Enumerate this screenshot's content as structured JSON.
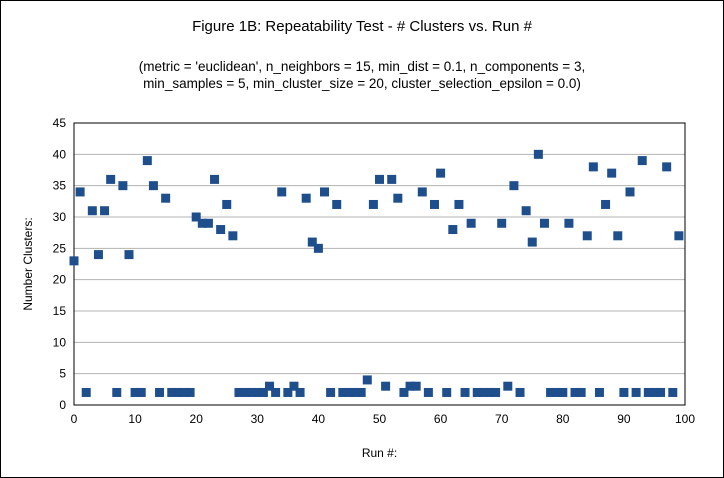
{
  "chart_data": {
    "type": "scatter",
    "title": "Figure 1B: Repeatability Test - # Clusters vs. Run #",
    "subtitle_line1": "(metric = 'euclidean', n_neighbors = 15, min_dist = 0.1, n_components = 3,",
    "subtitle_line2": "min_samples = 5, min_cluster_size = 20, cluster_selection_epsilon = 0.0)",
    "xlabel": "Run #:",
    "ylabel": "Number Clusters:",
    "xlim": [
      0,
      100
    ],
    "ylim": [
      0,
      45
    ],
    "xticks": [
      0,
      10,
      20,
      30,
      40,
      50,
      60,
      70,
      80,
      90,
      100
    ],
    "yticks": [
      0,
      5,
      10,
      15,
      20,
      25,
      30,
      35,
      40,
      45
    ],
    "grid": "horizontal",
    "legend": "none",
    "marker_color": "#1f4e8c",
    "x": [
      0,
      1,
      2,
      3,
      4,
      5,
      6,
      7,
      8,
      9,
      10,
      11,
      12,
      13,
      14,
      15,
      16,
      17,
      18,
      19,
      20,
      21,
      22,
      23,
      24,
      25,
      26,
      27,
      28,
      29,
      30,
      31,
      32,
      33,
      34,
      35,
      36,
      37,
      38,
      39,
      40,
      41,
      42,
      43,
      44,
      45,
      46,
      47,
      48,
      49,
      50,
      51,
      52,
      53,
      54,
      55,
      56,
      57,
      58,
      59,
      60,
      61,
      62,
      63,
      64,
      65,
      66,
      67,
      68,
      69,
      70,
      71,
      72,
      73,
      74,
      75,
      76,
      77,
      78,
      79,
      80,
      81,
      82,
      83,
      84,
      85,
      86,
      87,
      88,
      89,
      90,
      91,
      92,
      93,
      94,
      95,
      96,
      97,
      98,
      99
    ],
    "y": [
      23,
      34,
      2,
      31,
      24,
      31,
      36,
      2,
      35,
      24,
      2,
      2,
      39,
      35,
      2,
      33,
      2,
      2,
      2,
      2,
      30,
      29,
      29,
      36,
      28,
      32,
      27,
      2,
      2,
      2,
      2,
      2,
      3,
      2,
      34,
      2,
      3,
      2,
      33,
      26,
      25,
      34,
      2,
      32,
      2,
      2,
      2,
      2,
      4,
      32,
      36,
      3,
      36,
      33,
      2,
      3,
      3,
      34,
      2,
      32,
      37,
      2,
      28,
      32,
      2,
      29,
      2,
      2,
      2,
      2,
      29,
      3,
      35,
      2,
      31,
      26,
      40,
      29,
      2,
      2,
      2,
      29,
      2,
      2,
      27,
      38,
      2,
      32,
      37,
      27,
      2,
      34,
      2,
      39,
      2,
      2,
      2,
      38,
      2,
      27
    ]
  }
}
